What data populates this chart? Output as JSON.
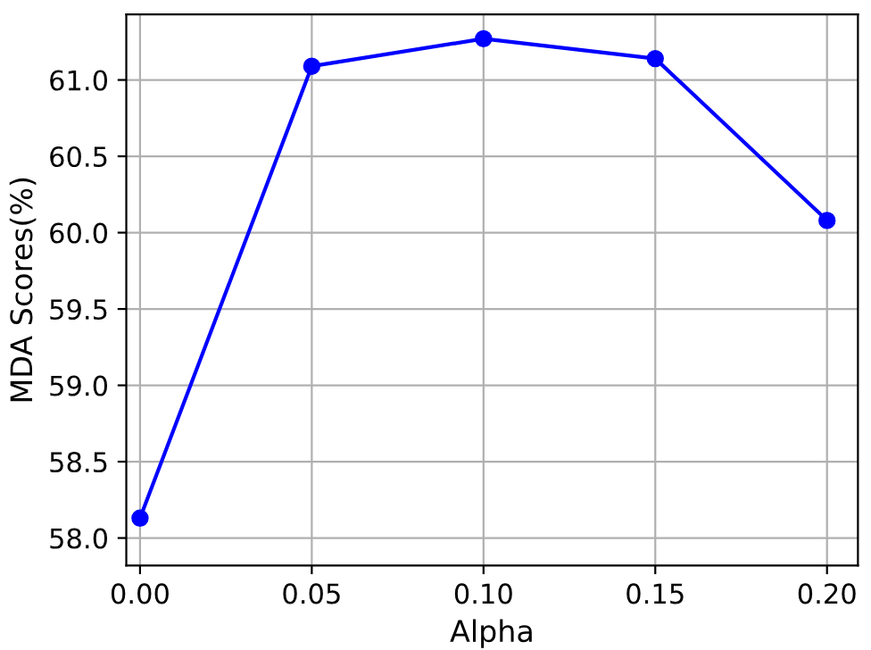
{
  "chart_data": {
    "type": "line",
    "xlabel": "Alpha",
    "ylabel": "MDA Scores(%)",
    "x": [
      0.0,
      0.05,
      0.1,
      0.15,
      0.2
    ],
    "series": [
      {
        "color": "#0000ff",
        "values": [
          58.13,
          61.09,
          61.27,
          61.14,
          60.08
        ]
      }
    ],
    "marker": "circle",
    "line_style": "solid",
    "grid": true,
    "xlim": [
      -0.004,
      0.209
    ],
    "xticks": [
      {
        "value": 0.0,
        "label": "0.00"
      },
      {
        "value": 0.05,
        "label": "0.05"
      },
      {
        "value": 0.1,
        "label": "0.10"
      },
      {
        "value": 0.15,
        "label": "0.15"
      },
      {
        "value": 0.2,
        "label": "0.20"
      }
    ],
    "ylim": [
      57.82,
      61.43
    ],
    "yticks": [
      {
        "value": 58.0,
        "label": "58.0"
      },
      58.5,
      {
        "value": 59.0,
        "label": "59.0"
      },
      59.5,
      {
        "value": 60.0,
        "label": "60.0"
      },
      60.5,
      {
        "value": 61.0,
        "label": "61.0"
      }
    ]
  }
}
